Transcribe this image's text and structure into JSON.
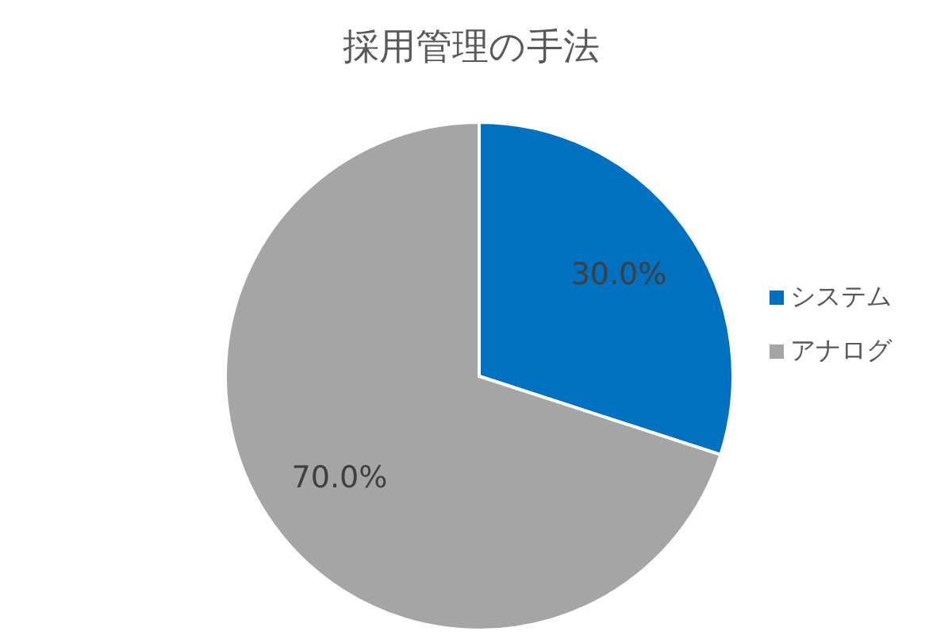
{
  "chart_data": {
    "type": "pie",
    "title": "採用管理の手法",
    "categories": [
      "システム",
      "アナログ"
    ],
    "values": [
      30,
      70
    ],
    "colors": [
      "#0070c0",
      "#a5a5a5"
    ],
    "value_labels": [
      "30.0%",
      "70.0%"
    ],
    "legend": "right"
  }
}
